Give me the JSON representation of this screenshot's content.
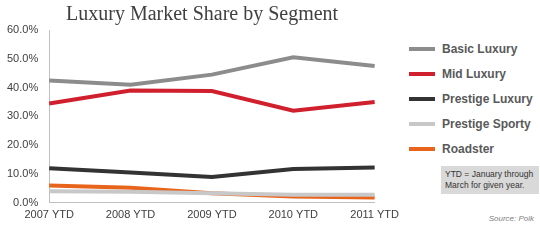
{
  "chart_data": {
    "type": "line",
    "title": "Luxury Market Share by Segment",
    "categories": [
      "2007 YTD",
      "2008 YTD",
      "2009 YTD",
      "2010 YTD",
      "2011 YTD"
    ],
    "series": [
      {
        "name": "Basic Luxury",
        "color": "#8c8c8c",
        "values": [
          42.5,
          41,
          44.5,
          50.5,
          47.5
        ]
      },
      {
        "name": "Mid Luxury",
        "color": "#d0202e",
        "values": [
          34.5,
          39,
          38.8,
          32,
          35
        ]
      },
      {
        "name": "Prestige Luxury",
        "color": "#333333",
        "values": [
          12,
          10.5,
          9,
          11.7,
          12.3
        ]
      },
      {
        "name": "Prestige Sporty",
        "color": "#c8c8c8",
        "values": [
          4,
          3.8,
          3.3,
          2.8,
          2.8
        ]
      },
      {
        "name": "Roadster",
        "color": "#e8641b",
        "values": [
          6,
          5.2,
          3.3,
          2.2,
          1.8
        ]
      }
    ],
    "ylim": [
      0,
      60
    ],
    "yticks": [
      {
        "value": 0,
        "label": "0.0%"
      },
      {
        "value": 10,
        "label": "10.0%"
      },
      {
        "value": 20,
        "label": "20.0%"
      },
      {
        "value": 30,
        "label": "30.0%"
      },
      {
        "value": 40,
        "label": "40.0%"
      },
      {
        "value": 50,
        "label": "50.0%"
      },
      {
        "value": 60,
        "label": "60.0%"
      }
    ],
    "grid": false,
    "legend": "right",
    "annotations": [
      "YTD = January through March for given year.",
      "Source: Polk"
    ]
  }
}
